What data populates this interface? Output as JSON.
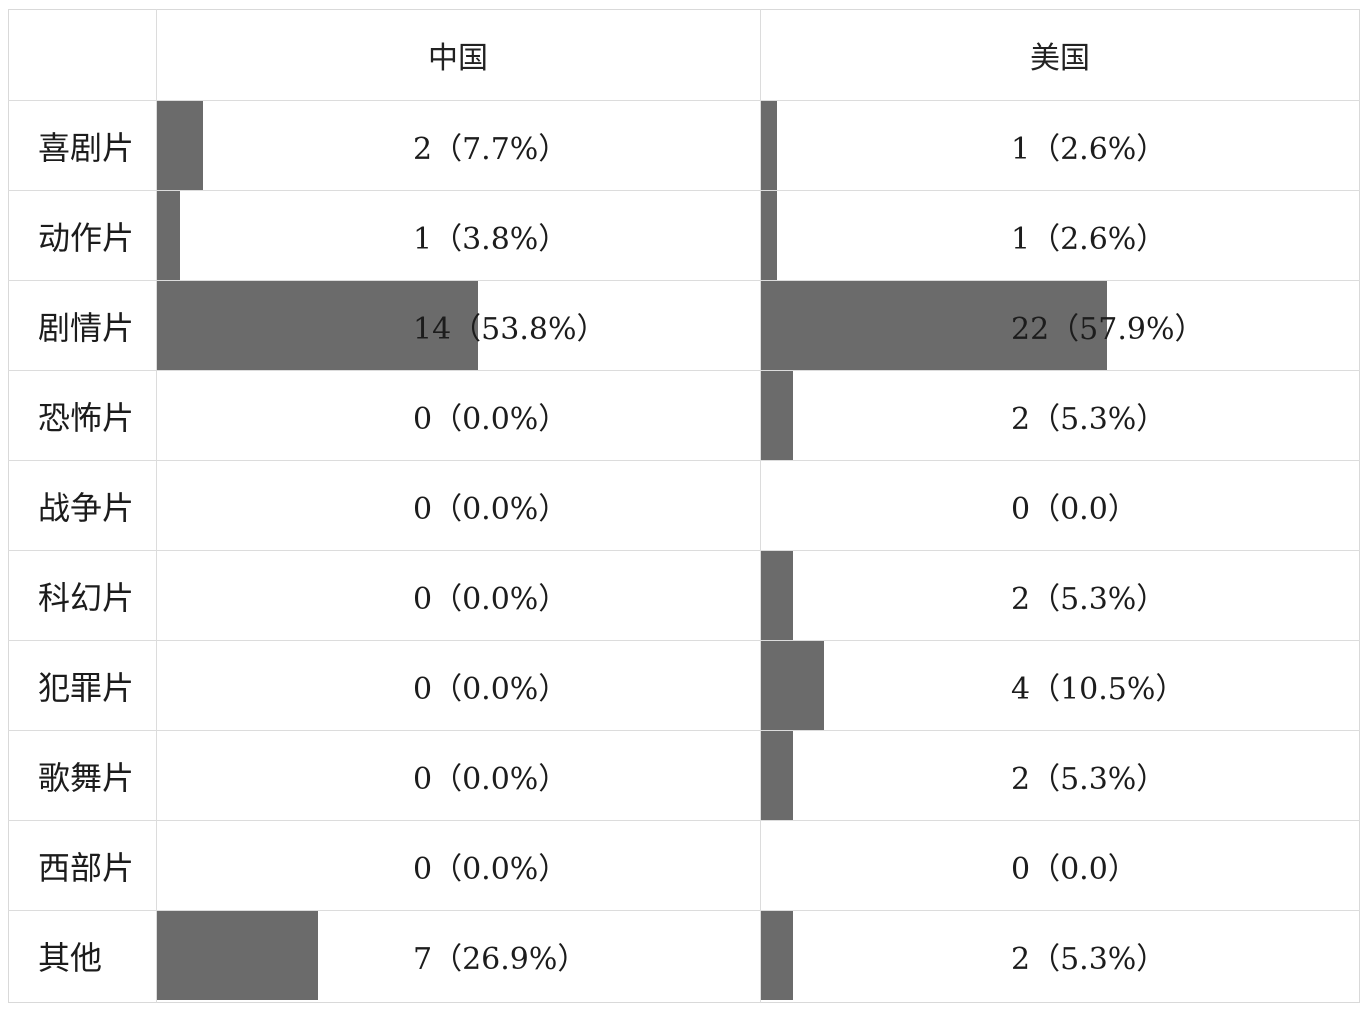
{
  "chart_data": {
    "type": "table",
    "columns": [
      {
        "label": ""
      },
      {
        "label": "中国"
      },
      {
        "label": "美国"
      }
    ],
    "rows": [
      {
        "category": "喜剧片",
        "cells": [
          {
            "text": "2（7.7%）",
            "value": 2,
            "percent": 7.7
          },
          {
            "text": "1（2.6%）",
            "value": 1,
            "percent": 2.6
          }
        ]
      },
      {
        "category": "动作片",
        "cells": [
          {
            "text": "1（3.8%）",
            "value": 1,
            "percent": 3.8
          },
          {
            "text": "1（2.6%）",
            "value": 1,
            "percent": 2.6
          }
        ]
      },
      {
        "category": "剧情片",
        "cells": [
          {
            "text": "14（53.8%）",
            "value": 14,
            "percent": 53.8
          },
          {
            "text": "22（57.9%）",
            "value": 22,
            "percent": 57.9
          }
        ]
      },
      {
        "category": "恐怖片",
        "cells": [
          {
            "text": "0（0.0%）",
            "value": 0,
            "percent": 0.0
          },
          {
            "text": "2（5.3%）",
            "value": 2,
            "percent": 5.3
          }
        ]
      },
      {
        "category": "战争片",
        "cells": [
          {
            "text": "0（0.0%）",
            "value": 0,
            "percent": 0.0
          },
          {
            "text": "0（0.0）",
            "value": 0,
            "percent": 0.0
          }
        ]
      },
      {
        "category": "科幻片",
        "cells": [
          {
            "text": "0（0.0%）",
            "value": 0,
            "percent": 0.0
          },
          {
            "text": "2（5.3%）",
            "value": 2,
            "percent": 5.3
          }
        ]
      },
      {
        "category": "犯罪片",
        "cells": [
          {
            "text": "0（0.0%）",
            "value": 0,
            "percent": 0.0
          },
          {
            "text": "4（10.5%）",
            "value": 4,
            "percent": 10.5
          }
        ]
      },
      {
        "category": "歌舞片",
        "cells": [
          {
            "text": "0（0.0%）",
            "value": 0,
            "percent": 0.0
          },
          {
            "text": "2（5.3%）",
            "value": 2,
            "percent": 5.3
          }
        ]
      },
      {
        "category": "西部片",
        "cells": [
          {
            "text": "0（0.0%）",
            "value": 0,
            "percent": 0.0
          },
          {
            "text": "0（0.0）",
            "value": 0,
            "percent": 0.0
          }
        ]
      },
      {
        "category": "其他",
        "cells": [
          {
            "text": "7（26.9%）",
            "value": 7,
            "percent": 26.9
          },
          {
            "text": "2（5.3%）",
            "value": 2,
            "percent": 5.3
          }
        ]
      }
    ],
    "bar_color": "#6b6b6b",
    "grid": true
  }
}
